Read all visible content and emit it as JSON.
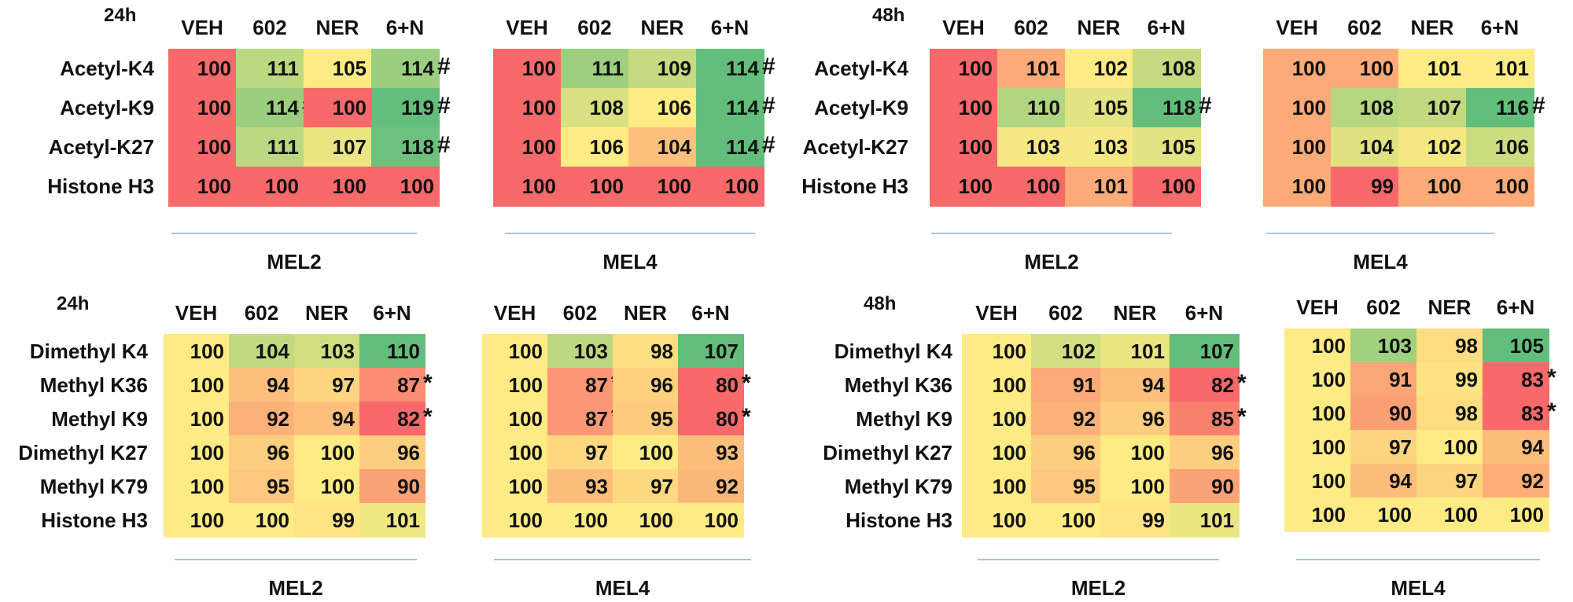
{
  "chart_data": [
    {
      "type": "heatmap",
      "time": "24h",
      "cell_line": "MEL2",
      "show_row_labels": true,
      "columns": [
        "VEH",
        "602",
        "NER",
        "6+N"
      ],
      "rows": [
        "Acetyl-K4",
        "Acetyl-K9",
        "Acetyl-K27",
        "Histone H3"
      ],
      "values": [
        [
          100,
          111,
          105,
          114
        ],
        [
          100,
          114,
          100,
          119
        ],
        [
          100,
          111,
          107,
          118
        ],
        [
          100,
          100,
          100,
          100
        ]
      ],
      "marks": [
        [
          "",
          "",
          "",
          "#"
        ],
        [
          "",
          "#",
          "",
          "#"
        ],
        [
          "",
          "",
          "",
          "#"
        ],
        [
          "",
          "",
          "",
          ""
        ]
      ]
    },
    {
      "type": "heatmap",
      "time": "",
      "cell_line": "MEL4",
      "show_row_labels": false,
      "columns": [
        "VEH",
        "602",
        "NER",
        "6+N"
      ],
      "rows": [
        "Acetyl-K4",
        "Acetyl-K9",
        "Acetyl-K27",
        "Histone H3"
      ],
      "values": [
        [
          100,
          111,
          109,
          114
        ],
        [
          100,
          108,
          106,
          114
        ],
        [
          100,
          106,
          104,
          114
        ],
        [
          100,
          100,
          100,
          100
        ]
      ],
      "marks": [
        [
          "",
          "",
          "",
          "#"
        ],
        [
          "",
          "",
          "",
          "#"
        ],
        [
          "",
          "",
          "",
          "#"
        ],
        [
          "",
          "",
          "",
          ""
        ]
      ]
    },
    {
      "type": "heatmap",
      "time": "48h",
      "cell_line": "MEL2",
      "show_row_labels": true,
      "columns": [
        "VEH",
        "602",
        "NER",
        "6+N"
      ],
      "rows": [
        "Acetyl-K4",
        "Acetyl-K9",
        "Acetyl-K27",
        "Histone H3"
      ],
      "values": [
        [
          100,
          101,
          102,
          108
        ],
        [
          100,
          110,
          105,
          118
        ],
        [
          100,
          103,
          103,
          105
        ],
        [
          100,
          100,
          101,
          100
        ]
      ],
      "marks": [
        [
          "",
          "",
          "",
          ""
        ],
        [
          "",
          "",
          "",
          "#"
        ],
        [
          "",
          "",
          "",
          ""
        ],
        [
          "",
          "",
          "",
          ""
        ]
      ]
    },
    {
      "type": "heatmap",
      "time": "",
      "cell_line": "MEL4",
      "show_row_labels": false,
      "columns": [
        "VEH",
        "602",
        "NER",
        "6+N"
      ],
      "rows": [
        "Acetyl-K4",
        "Acetyl-K9",
        "Acetyl-K27",
        "Histone H3"
      ],
      "values": [
        [
          100,
          100,
          101,
          101
        ],
        [
          100,
          108,
          107,
          116
        ],
        [
          100,
          104,
          102,
          106
        ],
        [
          100,
          99,
          100,
          100
        ]
      ],
      "marks": [
        [
          "",
          "",
          "",
          ""
        ],
        [
          "",
          "",
          "",
          "#"
        ],
        [
          "",
          "",
          "",
          ""
        ],
        [
          "",
          "",
          "",
          ""
        ]
      ]
    },
    {
      "type": "heatmap",
      "time": "24h",
      "cell_line": "MEL2",
      "show_row_labels": true,
      "columns": [
        "VEH",
        "602",
        "NER",
        "6+N"
      ],
      "rows": [
        "Dimethyl K4",
        "Methyl K36",
        "Methyl K9",
        "Dimethyl K27",
        "Methyl K79",
        "Histone H3"
      ],
      "values": [
        [
          100,
          104,
          103,
          110
        ],
        [
          100,
          94,
          97,
          87
        ],
        [
          100,
          92,
          94,
          82
        ],
        [
          100,
          96,
          100,
          96
        ],
        [
          100,
          95,
          100,
          90
        ],
        [
          100,
          100,
          99,
          101
        ]
      ],
      "marks": [
        [
          "",
          "",
          "",
          ""
        ],
        [
          "",
          "",
          "",
          "*"
        ],
        [
          "",
          "",
          "",
          "*"
        ],
        [
          "",
          "",
          "",
          ""
        ],
        [
          "",
          "",
          "",
          ""
        ],
        [
          "",
          "",
          "",
          ""
        ]
      ]
    },
    {
      "type": "heatmap",
      "time": "",
      "cell_line": "MEL4",
      "show_row_labels": false,
      "columns": [
        "VEH",
        "602",
        "NER",
        "6+N"
      ],
      "rows": [
        "Dimethyl K4",
        "Methyl K36",
        "Methyl K9",
        "Dimethyl K27",
        "Methyl K79",
        "Histone H3"
      ],
      "values": [
        [
          100,
          103,
          98,
          107
        ],
        [
          100,
          87,
          96,
          80
        ],
        [
          100,
          87,
          95,
          80
        ],
        [
          100,
          97,
          100,
          93
        ],
        [
          100,
          93,
          97,
          92
        ],
        [
          100,
          100,
          100,
          100
        ]
      ],
      "marks": [
        [
          "",
          "",
          "",
          ""
        ],
        [
          "",
          "*",
          "",
          "*"
        ],
        [
          "",
          "*",
          "",
          "*"
        ],
        [
          "",
          "",
          "",
          ""
        ],
        [
          "",
          "",
          "",
          ""
        ],
        [
          "",
          "",
          "",
          ""
        ]
      ]
    },
    {
      "type": "heatmap",
      "time": "48h",
      "cell_line": "MEL2",
      "show_row_labels": true,
      "columns": [
        "VEH",
        "602",
        "NER",
        "6+N"
      ],
      "rows": [
        "Dimethyl K4",
        "Methyl K36",
        "Methyl K9",
        "Dimethyl K27",
        "Methyl K79",
        "Histone H3"
      ],
      "values": [
        [
          100,
          102,
          101,
          107
        ],
        [
          100,
          91,
          94,
          82
        ],
        [
          100,
          92,
          96,
          85
        ],
        [
          100,
          96,
          100,
          96
        ],
        [
          100,
          95,
          100,
          90
        ],
        [
          100,
          100,
          99,
          101
        ]
      ],
      "marks": [
        [
          "",
          "",
          "",
          ""
        ],
        [
          "",
          "",
          "",
          "*"
        ],
        [
          "",
          "",
          "",
          "*"
        ],
        [
          "",
          "",
          "",
          ""
        ],
        [
          "",
          "",
          "",
          ""
        ],
        [
          "",
          "",
          "",
          ""
        ]
      ]
    },
    {
      "type": "heatmap",
      "time": "",
      "cell_line": "MEL4",
      "show_row_labels": false,
      "columns": [
        "VEH",
        "602",
        "NER",
        "6+N"
      ],
      "rows": [
        "Dimethyl K4",
        "Methyl K36",
        "Methyl K9",
        "Dimethyl K27",
        "Methyl K79",
        "Histone H3"
      ],
      "values": [
        [
          100,
          103,
          98,
          105
        ],
        [
          100,
          91,
          99,
          83
        ],
        [
          100,
          90,
          98,
          83
        ],
        [
          100,
          97,
          100,
          94
        ],
        [
          100,
          94,
          97,
          92
        ],
        [
          100,
          100,
          100,
          100
        ]
      ],
      "marks": [
        [
          "",
          "",
          "",
          ""
        ],
        [
          "",
          "",
          "",
          "*"
        ],
        [
          "",
          "",
          "",
          "*"
        ],
        [
          "",
          "",
          "",
          ""
        ],
        [
          "",
          "",
          "",
          ""
        ],
        [
          "",
          "",
          "",
          ""
        ]
      ]
    }
  ],
  "colors": {
    "red": "#f8696b",
    "orange": "#f7a672",
    "yellow": "#ffeb84",
    "green": "#63be7b",
    "text": "#111111",
    "underline": "#a9c4dc"
  }
}
